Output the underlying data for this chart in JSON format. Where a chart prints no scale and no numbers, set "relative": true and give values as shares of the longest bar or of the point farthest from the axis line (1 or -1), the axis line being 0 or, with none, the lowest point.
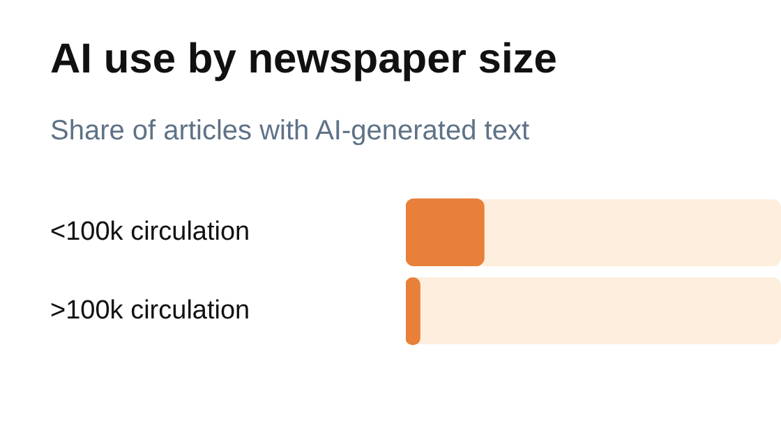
{
  "chart_data": {
    "type": "bar",
    "orientation": "horizontal",
    "relative": true,
    "title": "AI use by newspaper size",
    "subtitle": "Share of articles with AI-generated text",
    "categories": [
      "<100k circulation",
      ">100k circulation"
    ],
    "series": [
      {
        "color": "#e8803a",
        "values": [
          1,
          0.18
        ]
      }
    ],
    "legend": false
  }
}
